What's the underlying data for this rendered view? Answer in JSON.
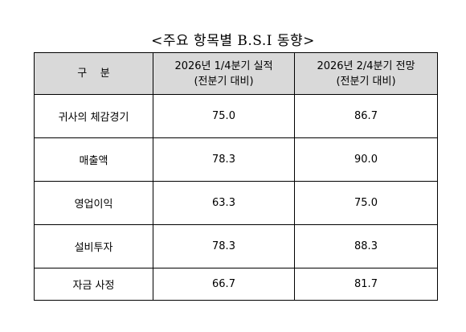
{
  "header": {
    "title": "<주요 항목별 B.S.I 동향>"
  },
  "table": {
    "columns": [
      [
        "구    분"
      ],
      [
        "2026년 1/4분기 실적",
        "(전분기 대비)"
      ],
      [
        "2026년 2/4분기 전망",
        "(전분기 대비)"
      ]
    ],
    "rows": [
      [
        "귀사의 체감경기",
        "75.0",
        "86.7"
      ],
      [
        "매출액",
        "78.3",
        "90.0"
      ],
      [
        "영업이익",
        "63.3",
        "75.0"
      ],
      [
        "설비투자",
        "78.3",
        "88.3"
      ],
      [
        "자금 사정",
        "66.7",
        "81.7"
      ]
    ]
  }
}
